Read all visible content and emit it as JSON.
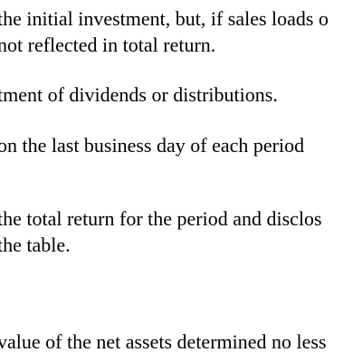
{
  "document": {
    "lines": [
      "the initial investment, but, if sales loads o",
      "not reflected in total return.",
      "tment of dividends or distributions.",
      "on the last business day of each period",
      "the total return for the period and disclos",
      "the table.",
      "value of the net assets determined no less"
    ]
  }
}
